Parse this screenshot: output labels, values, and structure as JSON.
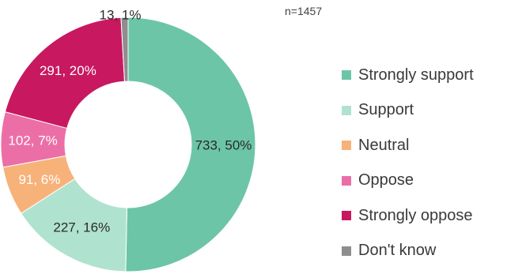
{
  "n_label": "n=1457",
  "chart_data": {
    "type": "pie",
    "donut": true,
    "start_angle_deg": 0,
    "direction": "clockwise",
    "legend_position": "right",
    "note": "n=1457",
    "slices": [
      {
        "name": "Strongly support",
        "value": 733,
        "percent": 50,
        "label": "733, 50%",
        "color": "#6cc5a7",
        "label_light": false
      },
      {
        "name": "Support",
        "value": 227,
        "percent": 16,
        "label": "227, 16%",
        "color": "#b0e2d0",
        "label_light": false
      },
      {
        "name": "Neutral",
        "value": 91,
        "percent": 6,
        "label": "91, 6%",
        "color": "#f7b27a",
        "label_light": true
      },
      {
        "name": "Oppose",
        "value": 102,
        "percent": 7,
        "label": "102, 7%",
        "color": "#eb6fa6",
        "label_light": true
      },
      {
        "name": "Strongly oppose",
        "value": 291,
        "percent": 20,
        "label": "291, 20%",
        "color": "#c8185f",
        "label_light": true
      },
      {
        "name": "Don't know",
        "value": 13,
        "percent": 1,
        "label": "13, 1%",
        "color": "#8e8e8e",
        "label_light": false
      }
    ]
  }
}
